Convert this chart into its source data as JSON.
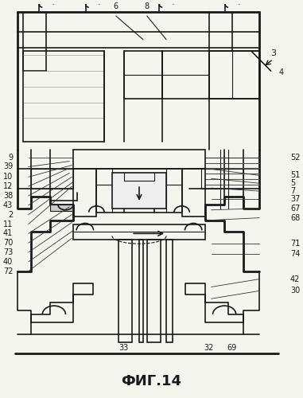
{
  "title": "ФИГ.14",
  "title_fontsize": 13,
  "background_color": "#f5f5f0",
  "figure_width": 3.81,
  "figure_height": 5.0,
  "dpi": 100,
  "label_fs": 7.0,
  "labels_left": [
    {
      "text": "9",
      "xf": 0.038,
      "yf": 0.558
    },
    {
      "text": "39",
      "xf": 0.038,
      "yf": 0.542
    },
    {
      "text": "10",
      "xf": 0.038,
      "yf": 0.526
    },
    {
      "text": "12",
      "xf": 0.038,
      "yf": 0.51
    },
    {
      "text": "38",
      "xf": 0.038,
      "yf": 0.494
    },
    {
      "text": "43",
      "xf": 0.038,
      "yf": 0.478
    },
    {
      "text": "2",
      "xf": 0.038,
      "yf": 0.46
    },
    {
      "text": "11",
      "xf": 0.038,
      "yf": 0.444
    },
    {
      "text": "41",
      "xf": 0.038,
      "yf": 0.428
    },
    {
      "text": "70",
      "xf": 0.038,
      "yf": 0.41
    },
    {
      "text": "73",
      "xf": 0.038,
      "yf": 0.394
    },
    {
      "text": "40",
      "xf": 0.038,
      "yf": 0.376
    },
    {
      "text": "72",
      "xf": 0.038,
      "yf": 0.358
    }
  ],
  "labels_right": [
    {
      "text": "52",
      "xf": 0.96,
      "yf": 0.558
    },
    {
      "text": "51",
      "xf": 0.96,
      "yf": 0.53
    },
    {
      "text": "5",
      "xf": 0.96,
      "yf": 0.514
    },
    {
      "text": "7",
      "xf": 0.96,
      "yf": 0.498
    },
    {
      "text": "37",
      "xf": 0.96,
      "yf": 0.482
    },
    {
      "text": "67",
      "xf": 0.96,
      "yf": 0.464
    },
    {
      "text": "68",
      "xf": 0.96,
      "yf": 0.448
    },
    {
      "text": "71",
      "xf": 0.96,
      "yf": 0.414
    },
    {
      "text": "74",
      "xf": 0.96,
      "yf": 0.396
    },
    {
      "text": "42",
      "xf": 0.96,
      "yf": 0.362
    },
    {
      "text": "30",
      "xf": 0.96,
      "yf": 0.344
    }
  ],
  "label_6": {
    "xf": 0.385,
    "yf": 0.938
  },
  "label_8": {
    "xf": 0.455,
    "yf": 0.938
  },
  "label_3": {
    "xf": 0.895,
    "yf": 0.888
  },
  "label_4": {
    "xf": 0.93,
    "yf": 0.862
  },
  "label_33": {
    "xf": 0.285,
    "yf": 0.148
  },
  "label_32": {
    "xf": 0.58,
    "yf": 0.148
  },
  "label_69": {
    "xf": 0.63,
    "yf": 0.148
  }
}
